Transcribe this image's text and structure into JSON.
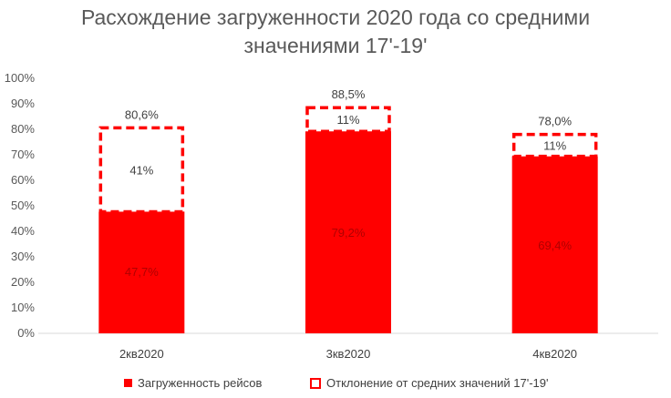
{
  "chart_data": {
    "type": "bar",
    "stacked": true,
    "title_lines": [
      "Расхождение загруженности 2020 года со средними",
      "значениями 17'-19'"
    ],
    "categories": [
      "2кв2020",
      "3кв2020",
      "4кв2020"
    ],
    "series": [
      {
        "name": "Загруженность рейсов",
        "values": [
          47.7,
          79.2,
          69.4
        ],
        "labels": [
          "47,7%",
          "79,2%",
          "69,4%"
        ],
        "color": "#ff0000",
        "style": "solid"
      },
      {
        "name": "Отклонение от средних значений 17'-19'",
        "values": [
          32.9,
          9.3,
          8.6
        ],
        "labels": [
          "41%",
          "11%",
          "11%"
        ],
        "color": "#ff0000",
        "style": "dashed"
      }
    ],
    "totals": [
      "80,6%",
      "88,5%",
      "78,0%"
    ],
    "total_values": [
      80.6,
      88.5,
      78.0
    ],
    "yticks": [
      "0%",
      "10%",
      "20%",
      "30%",
      "40%",
      "50%",
      "60%",
      "70%",
      "80%",
      "90%",
      "100%"
    ],
    "ylim": [
      0,
      100
    ],
    "legend_position": "bottom"
  }
}
